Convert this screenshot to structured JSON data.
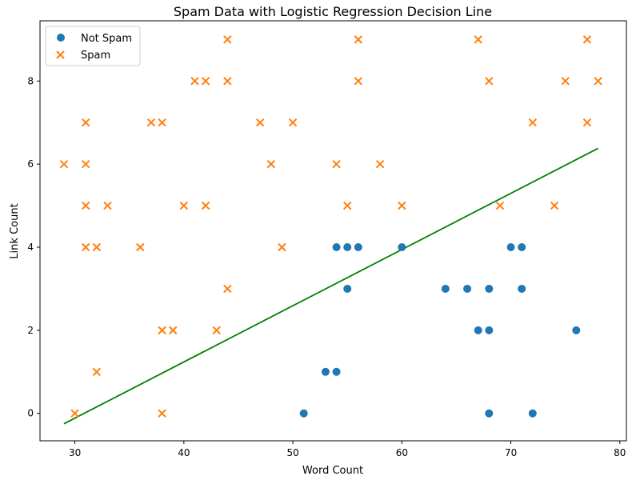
{
  "chart_data": {
    "type": "scatter",
    "title": "Spam Data with Logistic Regression Decision Line",
    "xlabel": "Word Count",
    "ylabel": "Link Count",
    "xlim": [
      26.8,
      80.6
    ],
    "ylim": [
      -0.66,
      9.45
    ],
    "xticks": [
      30,
      40,
      50,
      60,
      70,
      80
    ],
    "yticks": [
      0,
      2,
      4,
      6,
      8
    ],
    "grid": false,
    "legend_position": "top-left",
    "series": [
      {
        "name": "Not Spam",
        "marker": "circle",
        "color": "#1f77b4",
        "points": [
          [
            51,
            0
          ],
          [
            53,
            1
          ],
          [
            54,
            1
          ],
          [
            54,
            4
          ],
          [
            55,
            4
          ],
          [
            55,
            3
          ],
          [
            56,
            4
          ],
          [
            60,
            4
          ],
          [
            64,
            3
          ],
          [
            66,
            3
          ],
          [
            67,
            2
          ],
          [
            68,
            3
          ],
          [
            68,
            2
          ],
          [
            68,
            0
          ],
          [
            70,
            4
          ],
          [
            71,
            4
          ],
          [
            71,
            3
          ],
          [
            72,
            0
          ],
          [
            76,
            2
          ]
        ]
      },
      {
        "name": "Spam",
        "marker": "x",
        "color": "#ff7f0e",
        "points": [
          [
            29,
            6
          ],
          [
            30,
            0
          ],
          [
            31,
            7
          ],
          [
            31,
            6
          ],
          [
            31,
            5
          ],
          [
            31,
            4
          ],
          [
            32,
            4
          ],
          [
            32,
            1
          ],
          [
            33,
            5
          ],
          [
            36,
            4
          ],
          [
            37,
            7
          ],
          [
            38,
            7
          ],
          [
            38,
            2
          ],
          [
            38,
            0
          ],
          [
            39,
            2
          ],
          [
            40,
            5
          ],
          [
            41,
            8
          ],
          [
            42,
            8
          ],
          [
            42,
            5
          ],
          [
            43,
            2
          ],
          [
            44,
            9
          ],
          [
            44,
            8
          ],
          [
            44,
            3
          ],
          [
            47,
            7
          ],
          [
            48,
            6
          ],
          [
            49,
            4
          ],
          [
            50,
            7
          ],
          [
            54,
            6
          ],
          [
            55,
            5
          ],
          [
            56,
            9
          ],
          [
            56,
            8
          ],
          [
            58,
            6
          ],
          [
            60,
            5
          ],
          [
            67,
            9
          ],
          [
            68,
            8
          ],
          [
            69,
            5
          ],
          [
            72,
            7
          ],
          [
            74,
            5
          ],
          [
            75,
            8
          ],
          [
            77,
            9
          ],
          [
            77,
            7
          ],
          [
            78,
            8
          ]
        ]
      }
    ],
    "decision_line": {
      "color": "#008000",
      "points": [
        [
          29,
          -0.25
        ],
        [
          78,
          6.38
        ]
      ]
    }
  }
}
